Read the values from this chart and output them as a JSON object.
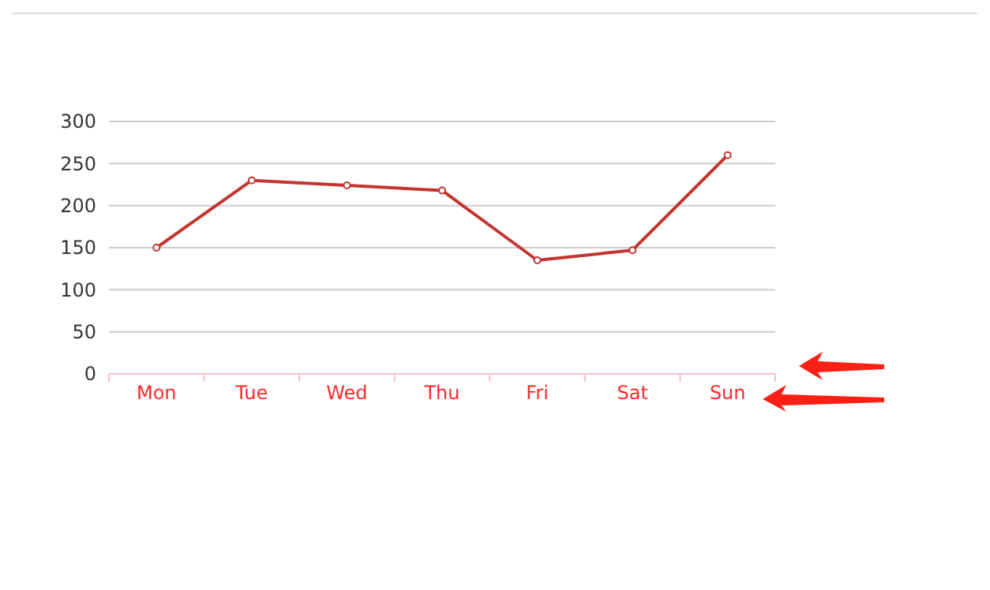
{
  "chart_data": {
    "type": "line",
    "categories": [
      "Mon",
      "Tue",
      "Wed",
      "Thu",
      "Fri",
      "Sat",
      "Sun"
    ],
    "series": [
      {
        "color": "#c23531",
        "values": [
          150,
          230,
          224,
          218,
          135,
          147,
          260
        ]
      }
    ],
    "ylim": [
      0,
      300
    ],
    "yticks": [
      0,
      50,
      100,
      150,
      200,
      250,
      300
    ],
    "grid": "y",
    "marker": "circle"
  }
}
